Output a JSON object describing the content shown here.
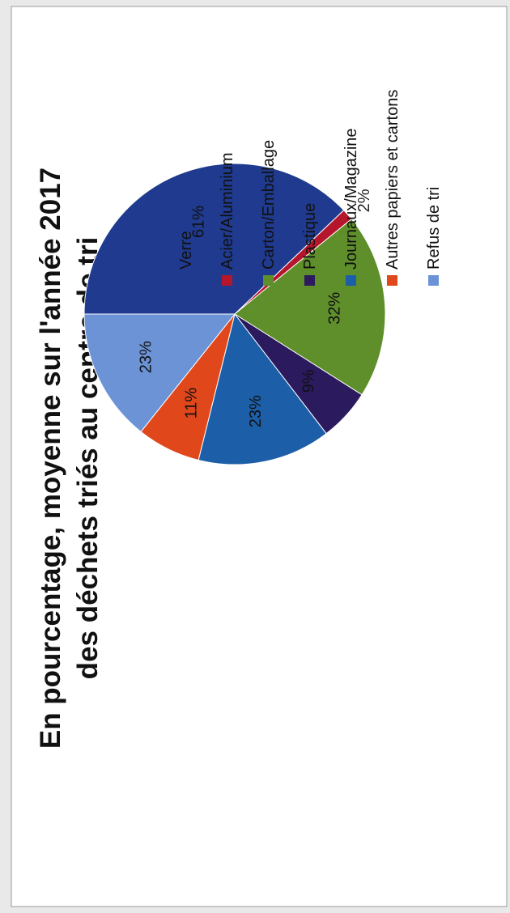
{
  "chart_data": {
    "type": "pie",
    "title_lines": [
      "En pourcentage, moyenne sur l'année 2017",
      "des déchets triés au centre de tri"
    ],
    "slices": [
      {
        "label": "Verre",
        "value": 61,
        "value_label": "61%",
        "color": "#1f3a8f"
      },
      {
        "label": "Acier/Aluminium",
        "value": 2,
        "value_label": "2%",
        "color": "#b5162b"
      },
      {
        "label": "Carton/Emballage",
        "value": 32,
        "value_label": "32%",
        "color": "#5e8f2a"
      },
      {
        "label": "Plastique",
        "value": 9,
        "value_label": "9%",
        "color": "#2b1a5e"
      },
      {
        "label": "Journaux/Magazine",
        "value": 23,
        "value_label": "23%",
        "color": "#1c5fa8"
      },
      {
        "label": "Autres papiers et cartons",
        "value": 11,
        "value_label": "11%",
        "color": "#e0481c"
      },
      {
        "label": "Refus de tri",
        "value": 23,
        "value_label": "23%",
        "color": "#6b93d6"
      }
    ],
    "legend_position": "right"
  }
}
